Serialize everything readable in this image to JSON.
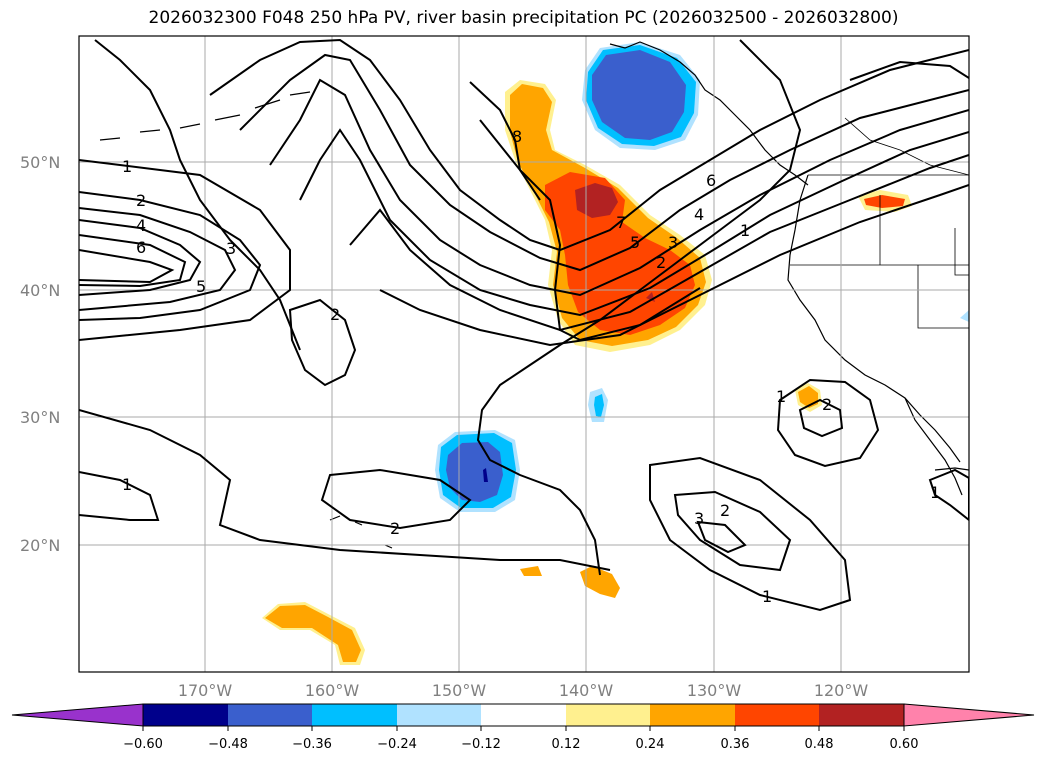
{
  "title": "2026032300 F048 250 hPa PV, river basin precipitation PC (2026032500 - 2026032800)",
  "lat_labels": [
    "50°N",
    "40°N",
    "30°N",
    "20°N"
  ],
  "lon_labels": [
    "170°W",
    "160°W",
    "150°W",
    "140°W",
    "130°W",
    "120°W"
  ],
  "pv_contour_labels": [
    "1",
    "2",
    "4",
    "6",
    "3",
    "5",
    "8",
    "7",
    "6",
    "5",
    "4",
    "3",
    "2",
    "1",
    "2",
    "1",
    "1",
    "2",
    "2",
    "3",
    "2",
    "1",
    "1"
  ],
  "colorbar": {
    "tick_labels": [
      "−0.60",
      "−0.48",
      "−0.36",
      "−0.24",
      "−0.12",
      "0.12",
      "0.24",
      "0.36",
      "0.48",
      "0.60"
    ],
    "colors": [
      "#9932cc",
      "#00008b",
      "#3a5fcd",
      "#00bfff",
      "#b0e2ff",
      "#ffffff",
      "#fff08f",
      "#ffa500",
      "#ff4500",
      "#b22222",
      "#ff82ab"
    ]
  },
  "colors": {
    "orange": "#ffa500",
    "red_orange": "#ff4500",
    "dark_red": "#b22222",
    "light_yellow": "#fff08f",
    "royal_blue": "#3a5fcd",
    "sky_blue": "#00bfff",
    "light_blue": "#b0e2ff"
  }
}
